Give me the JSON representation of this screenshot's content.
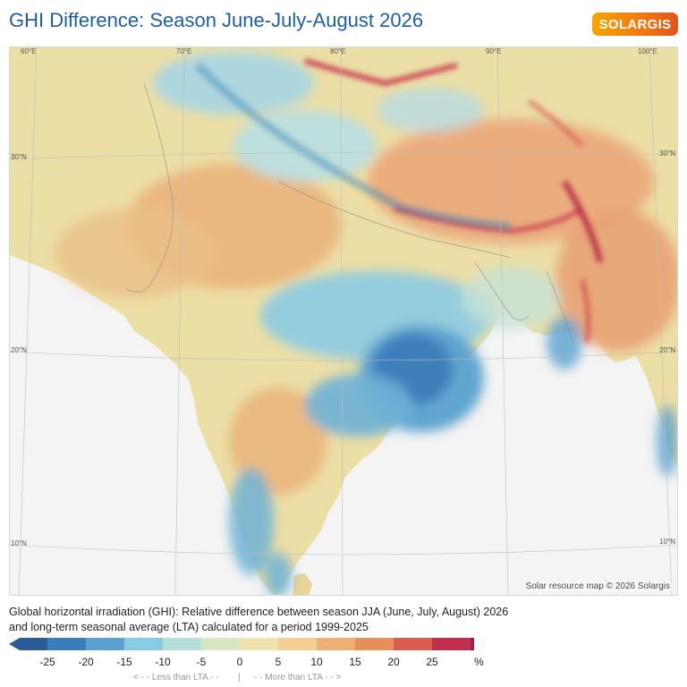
{
  "header": {
    "title": "GHI Difference: Season June-July-August 2026",
    "logo_text": "SOLARGIS"
  },
  "map": {
    "credit": "Solar resource map © 2026 Solargis",
    "longitude_labels": [
      "60°E",
      "70°E",
      "80°E",
      "90°E",
      "100°E"
    ],
    "latitude_labels": [
      {
        "left": "30°N",
        "right": "30°N"
      },
      {
        "left": "20°N",
        "right": "20°N"
      },
      {
        "left": "10°N",
        "right": "10°N"
      }
    ],
    "colors": {
      "sea": "#f4f4f4",
      "neutral": "#ebe3a8",
      "warm": "#eab37a",
      "cool": "#8fcbe0",
      "deep_cool": "#3f86bd",
      "hot": "#c8304a"
    }
  },
  "description": "Global horizontal irradiation (GHI): Relative difference between season JJA (June, July, August) 2026 and long-term seasonal average (LTA) calculated for a period 1999-2025",
  "legend": {
    "ticks": [
      "-25",
      "-20",
      "-15",
      "-10",
      "-5",
      "0",
      "5",
      "10",
      "15",
      "20",
      "25"
    ],
    "unit": "%",
    "less_label": "< - - Less than LTA - -",
    "separator": "|",
    "more_label": "- - More than LTA - - >",
    "colors": [
      "#2b5c97",
      "#3b7cba",
      "#5aa1cf",
      "#89cbe4",
      "#b4ded7",
      "#d8e6c3",
      "#efe3ad",
      "#f1cf93",
      "#eeb075",
      "#e98d5d",
      "#dd5c52",
      "#c32e4e",
      "#a51c48"
    ]
  }
}
